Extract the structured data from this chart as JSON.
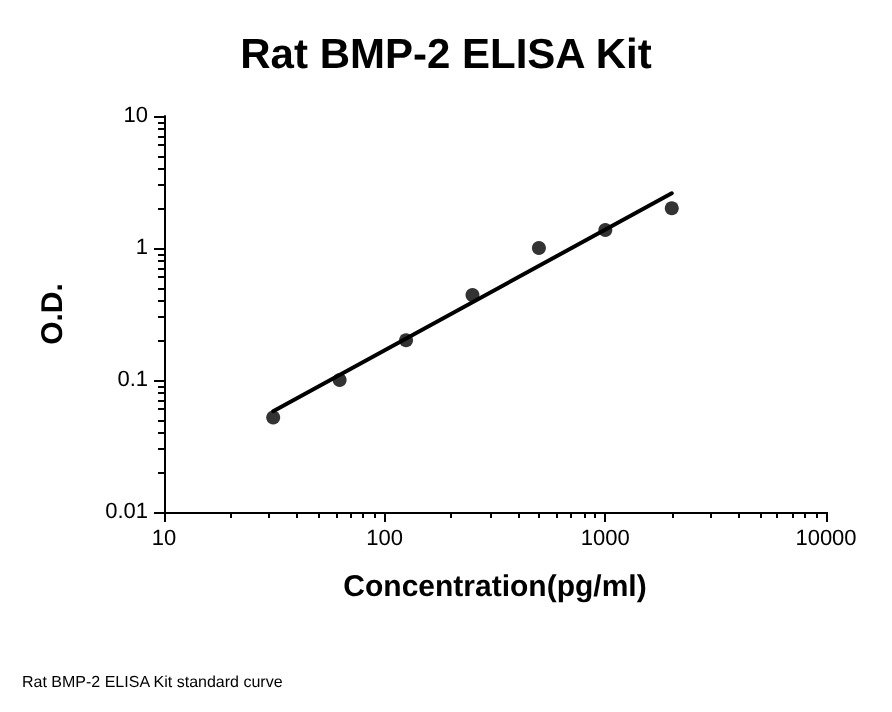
{
  "chart_data": {
    "type": "scatter",
    "title": "Rat BMP-2 ELISA Kit",
    "xlabel": "Concentration(pg/ml)",
    "ylabel": "O.D.",
    "annotations": [
      "Rat BMP-2 ELISA Kit standard curve"
    ],
    "series": [
      {
        "color": "#000000",
        "x": [
          31.25,
          62.5,
          125,
          250,
          500,
          1000,
          2000
        ],
        "values": [
          0.052,
          0.1,
          0.2,
          0.44,
          1.0,
          1.37,
          2.0
        ],
        "marker": "circle"
      },
      {
        "type": "line",
        "color": "#000000",
        "x": [
          31.25,
          2000
        ],
        "values": [
          0.058,
          2.6
        ],
        "marker": "none",
        "line_style": "solid"
      }
    ],
    "log": "xy",
    "xlim": [
      10,
      10000
    ],
    "xticks": [
      10,
      100,
      1000,
      10000
    ],
    "ylim": [
      0.01,
      10
    ],
    "yticks": [
      0.01,
      0.1,
      1,
      10
    ],
    "grid": false
  }
}
